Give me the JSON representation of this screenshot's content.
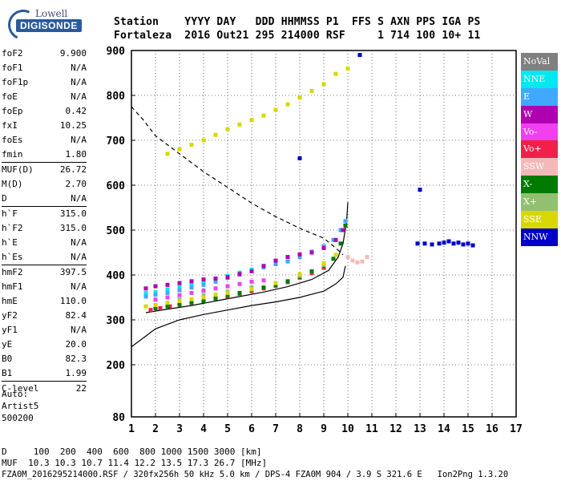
{
  "logo": {
    "line1": "Lowell",
    "line2": "DIGISONDE"
  },
  "header": {
    "line1": "Station    YYYY DAY   DDD HHMMSS P1  FFS S AXN PPS IGA PS",
    "line2": "Fortaleza  2016 Out21 295 214000 RSF     1 714 100 10+ 11"
  },
  "params": [
    {
      "k": "foF2",
      "v": "9.900"
    },
    {
      "k": "foF1",
      "v": "N/A"
    },
    {
      "k": "foF1p",
      "v": "N/A"
    },
    {
      "k": "foE",
      "v": "N/A"
    },
    {
      "k": "foEp",
      "v": "0.42"
    },
    {
      "k": "fxI",
      "v": "10.25"
    },
    {
      "k": "foEs",
      "v": "N/A"
    },
    {
      "k": "fmin",
      "v": "1.80"
    },
    {
      "k": "MUF(D)",
      "v": "26.72"
    },
    {
      "k": "M(D)",
      "v": "2.70"
    },
    {
      "k": "D",
      "v": "N/A"
    },
    {
      "k": "h`F",
      "v": "315.0"
    },
    {
      "k": "h`F2",
      "v": "315.0"
    },
    {
      "k": "h`E",
      "v": "N/A"
    },
    {
      "k": "h`Es",
      "v": "N/A"
    },
    {
      "k": "hmF2",
      "v": "397.5"
    },
    {
      "k": "hmF1",
      "v": "N/A"
    },
    {
      "k": "hmE",
      "v": "110.0"
    },
    {
      "k": "yF2",
      "v": "82.4"
    },
    {
      "k": "yF1",
      "v": "N/A"
    },
    {
      "k": "yE",
      "v": "20.0"
    },
    {
      "k": "B0",
      "v": "82.3"
    },
    {
      "k": "B1",
      "v": "1.99"
    },
    {
      "k": "C-level",
      "v": "22"
    }
  ],
  "auto": {
    "line1": "Auto:",
    "line2": "Artist5",
    "line3": "500200"
  },
  "legend": [
    {
      "label": "NoVal",
      "color": "#808080"
    },
    {
      "label": "NNE",
      "color": "#00e8f0"
    },
    {
      "label": "E",
      "color": "#40a8ff"
    },
    {
      "label": "W",
      "color": "#b000b0"
    },
    {
      "label": "Vo-",
      "color": "#f040f0"
    },
    {
      "label": "Vo+",
      "color": "#f0204a"
    },
    {
      "label": "SSW",
      "color": "#f4b8b8"
    },
    {
      "label": "X-",
      "color": "#007a00"
    },
    {
      "label": "X+",
      "color": "#90c070"
    },
    {
      "label": "SSE",
      "color": "#d8d800"
    },
    {
      "label": "NNW",
      "color": "#0000c8"
    }
  ],
  "bottom": {
    "line1": "D     100  200  400  600  800 1000 1500 3000 [km]",
    "line2": "MUF  10.3 10.3 10.7 11.4 12.2 13.5 17.3 26.7 [MHz]",
    "line3": "FZA0M_2016295214000.RSF / 320fx256h 50 kHz 5.0 km / DPS-4 FZA0M 904 / 3.9 S 321.6 E   Ion2Png 1.3.20"
  },
  "chart_data": {
    "type": "scatter",
    "title": "",
    "xlabel": "",
    "ylabel": "",
    "xlim": [
      1,
      17
    ],
    "ylim": [
      80,
      900
    ],
    "x_ticks": [
      1,
      2,
      3,
      4,
      5,
      6,
      7,
      8,
      9,
      10,
      11,
      12,
      13,
      14,
      15,
      16,
      17
    ],
    "y_ticks": [
      80,
      200,
      300,
      400,
      500,
      600,
      700,
      800,
      900
    ],
    "grid": true,
    "series": [
      {
        "name": "NNE",
        "color": "#00e8f0",
        "points": [
          [
            1.6,
            360
          ],
          [
            2.0,
            362
          ],
          [
            2.5,
            368
          ],
          [
            3.0,
            374
          ],
          [
            3.5,
            380
          ],
          [
            4.0,
            386
          ],
          [
            4.5,
            392
          ],
          [
            5.0,
            398
          ],
          [
            5.5,
            405
          ],
          [
            6.0,
            412
          ],
          [
            6.5,
            420
          ],
          [
            7.0,
            428
          ]
        ]
      },
      {
        "name": "E",
        "color": "#40a8ff",
        "points": [
          [
            1.6,
            352
          ],
          [
            2.0,
            356
          ],
          [
            2.5,
            360
          ],
          [
            3.0,
            366
          ],
          [
            3.5,
            372
          ],
          [
            4.0,
            378
          ],
          [
            4.5,
            385
          ],
          [
            5.0,
            393
          ],
          [
            5.5,
            401
          ],
          [
            6.0,
            409
          ],
          [
            6.5,
            417
          ],
          [
            7.0,
            424
          ],
          [
            7.5,
            430
          ],
          [
            8.0,
            440
          ],
          [
            8.5,
            452
          ],
          [
            9.0,
            464
          ],
          [
            9.4,
            478
          ],
          [
            9.7,
            500
          ],
          [
            9.9,
            520
          ]
        ]
      },
      {
        "name": "W",
        "color": "#b000b0",
        "points": [
          [
            1.6,
            370
          ],
          [
            2.0,
            375
          ],
          [
            2.5,
            378
          ],
          [
            3.0,
            382
          ],
          [
            3.5,
            386
          ],
          [
            4.0,
            390
          ],
          [
            4.5,
            392
          ],
          [
            5.0,
            395
          ],
          [
            5.5,
            402
          ],
          [
            6.0,
            408
          ],
          [
            6.5,
            420
          ],
          [
            7.0,
            432
          ],
          [
            7.5,
            440
          ],
          [
            8.0,
            446
          ],
          [
            8.5,
            450
          ],
          [
            9.0,
            460
          ],
          [
            9.5,
            478
          ],
          [
            9.8,
            500
          ]
        ]
      },
      {
        "name": "Vo-",
        "color": "#f040f0",
        "points": [
          [
            2.0,
            345
          ],
          [
            2.5,
            350
          ],
          [
            3.0,
            355
          ],
          [
            3.5,
            360
          ],
          [
            4.0,
            365
          ],
          [
            4.5,
            370
          ],
          [
            5.0,
            375
          ],
          [
            5.5,
            380
          ],
          [
            6.0,
            385
          ],
          [
            6.5,
            388
          ]
        ]
      },
      {
        "name": "Vo+",
        "color": "#f0204a",
        "points": [
          [
            1.8,
            322
          ],
          [
            2.2,
            326
          ],
          [
            2.6,
            330
          ],
          [
            3.0,
            334
          ],
          [
            3.5,
            338
          ],
          [
            4.0,
            342
          ],
          [
            4.5,
            348
          ],
          [
            5.0,
            352
          ],
          [
            5.5,
            358
          ],
          [
            6.0,
            364
          ],
          [
            6.5,
            370
          ],
          [
            7.0,
            376
          ],
          [
            7.5,
            384
          ],
          [
            8.0,
            394
          ],
          [
            8.5,
            404
          ],
          [
            9.0,
            416
          ]
        ]
      },
      {
        "name": "SSW",
        "color": "#f4b8b8",
        "points": [
          [
            3.0,
            336
          ],
          [
            3.5,
            340
          ],
          [
            4.0,
            344
          ],
          [
            4.5,
            350
          ],
          [
            10.0,
            440
          ],
          [
            10.2,
            432
          ],
          [
            10.4,
            428
          ],
          [
            10.6,
            430
          ],
          [
            10.8,
            440
          ]
        ]
      },
      {
        "name": "X-",
        "color": "#007a00",
        "points": [
          [
            2.0,
            326
          ],
          [
            2.5,
            330
          ],
          [
            3.0,
            334
          ],
          [
            3.5,
            338
          ],
          [
            4.0,
            342
          ],
          [
            4.5,
            348
          ],
          [
            5.0,
            354
          ],
          [
            5.5,
            360
          ],
          [
            6.0,
            366
          ],
          [
            6.5,
            372
          ],
          [
            7.0,
            378
          ],
          [
            7.5,
            386
          ],
          [
            8.0,
            396
          ],
          [
            8.5,
            408
          ],
          [
            9.0,
            420
          ],
          [
            9.4,
            436
          ],
          [
            9.7,
            470
          ],
          [
            9.9,
            510
          ]
        ]
      },
      {
        "name": "X+",
        "color": "#90c070",
        "points": [
          [
            3.0,
            345
          ],
          [
            4.0,
            355
          ],
          [
            5.0,
            363
          ],
          [
            6.0,
            372
          ],
          [
            7.0,
            382
          ],
          [
            8.0,
            398
          ],
          [
            9.0,
            422
          ]
        ]
      },
      {
        "name": "SSE",
        "color": "#d8d800",
        "points": [
          [
            1.6,
            330
          ],
          [
            2.0,
            333
          ],
          [
            2.5,
            338
          ],
          [
            3.0,
            342
          ],
          [
            3.5,
            346
          ],
          [
            4.0,
            350
          ],
          [
            4.5,
            356
          ],
          [
            5.0,
            360
          ],
          [
            6.0,
            368
          ],
          [
            7.0,
            382
          ],
          [
            8.0,
            402
          ],
          [
            9.0,
            426
          ],
          [
            9.5,
            445
          ],
          [
            2.5,
            670
          ],
          [
            3.0,
            680
          ],
          [
            3.5,
            690
          ],
          [
            4.0,
            700
          ],
          [
            4.5,
            712
          ],
          [
            5.0,
            725
          ],
          [
            5.5,
            735
          ],
          [
            6.0,
            745
          ],
          [
            6.5,
            755
          ],
          [
            7.0,
            768
          ],
          [
            7.5,
            780
          ],
          [
            8.0,
            795
          ],
          [
            8.5,
            810
          ],
          [
            9.0,
            825
          ],
          [
            9.5,
            848
          ],
          [
            10.0,
            860
          ]
        ]
      },
      {
        "name": "NNW",
        "color": "#0000c8",
        "points": [
          [
            12.9,
            470
          ],
          [
            13.2,
            470
          ],
          [
            13.5,
            468
          ],
          [
            13.8,
            470
          ],
          [
            14.0,
            472
          ],
          [
            14.2,
            475
          ],
          [
            14.4,
            470
          ],
          [
            14.6,
            472
          ],
          [
            14.8,
            468
          ],
          [
            15.0,
            470
          ],
          [
            15.2,
            466
          ],
          [
            8.0,
            660
          ],
          [
            10.5,
            890
          ],
          [
            13.0,
            590
          ]
        ]
      }
    ],
    "curves": [
      {
        "name": "profile",
        "style": "solid",
        "points": [
          [
            1.0,
            240
          ],
          [
            2.0,
            280
          ],
          [
            3.0,
            300
          ],
          [
            4.0,
            312
          ],
          [
            5.0,
            322
          ],
          [
            6.0,
            332
          ],
          [
            7.0,
            340
          ],
          [
            8.0,
            350
          ],
          [
            9.0,
            364
          ],
          [
            9.5,
            380
          ],
          [
            9.8,
            395
          ],
          [
            9.9,
            420
          ]
        ]
      },
      {
        "name": "trace",
        "style": "solid",
        "points": [
          [
            1.6,
            316
          ],
          [
            2.5,
            324
          ],
          [
            3.5,
            332
          ],
          [
            4.5,
            342
          ],
          [
            5.5,
            352
          ],
          [
            6.5,
            362
          ],
          [
            7.5,
            374
          ],
          [
            8.5,
            390
          ],
          [
            9.2,
            410
          ],
          [
            9.6,
            440
          ],
          [
            9.8,
            470
          ],
          [
            9.95,
            520
          ],
          [
            10.0,
            562
          ]
        ]
      },
      {
        "name": "muf",
        "style": "dashed",
        "points": [
          [
            1.0,
            775
          ],
          [
            1.5,
            745
          ],
          [
            2.0,
            710
          ],
          [
            2.5,
            690
          ],
          [
            3.0,
            670
          ],
          [
            4.0,
            630
          ],
          [
            5.0,
            595
          ],
          [
            6.0,
            560
          ],
          [
            7.0,
            530
          ],
          [
            8.0,
            504
          ],
          [
            9.0,
            482
          ],
          [
            9.5,
            460
          ],
          [
            9.8,
            445
          ]
        ]
      }
    ]
  }
}
